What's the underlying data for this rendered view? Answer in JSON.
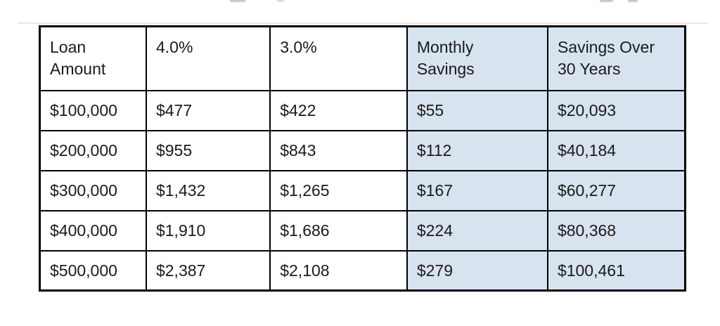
{
  "chart_data": {
    "type": "table",
    "columns": [
      {
        "label": "Loan\nAmount",
        "highlighted": false
      },
      {
        "label": "4.0%",
        "highlighted": false
      },
      {
        "label": "3.0%",
        "highlighted": false
      },
      {
        "label": "Monthly\nSavings",
        "highlighted": true
      },
      {
        "label": "Savings Over\n30 Years",
        "highlighted": true
      }
    ],
    "rows": [
      [
        "$100,000",
        "$477",
        "$422",
        "$55",
        "$20,093"
      ],
      [
        "$200,000",
        "$955",
        "$843",
        "$112",
        "$40,184"
      ],
      [
        "$300,000",
        "$1,432",
        "$1,265",
        "$167",
        "$60,277"
      ],
      [
        "$400,000",
        "$1,910",
        "$1,686",
        "$224",
        "$80,368"
      ],
      [
        "$500,000",
        "$2,387",
        "$2,108",
        "$279",
        "$100,461"
      ]
    ],
    "colors": {
      "highlight_fill": "#d8e3f0",
      "row_fill": "#ffffff",
      "border": "#000000",
      "text": "#1a1a1a"
    }
  }
}
